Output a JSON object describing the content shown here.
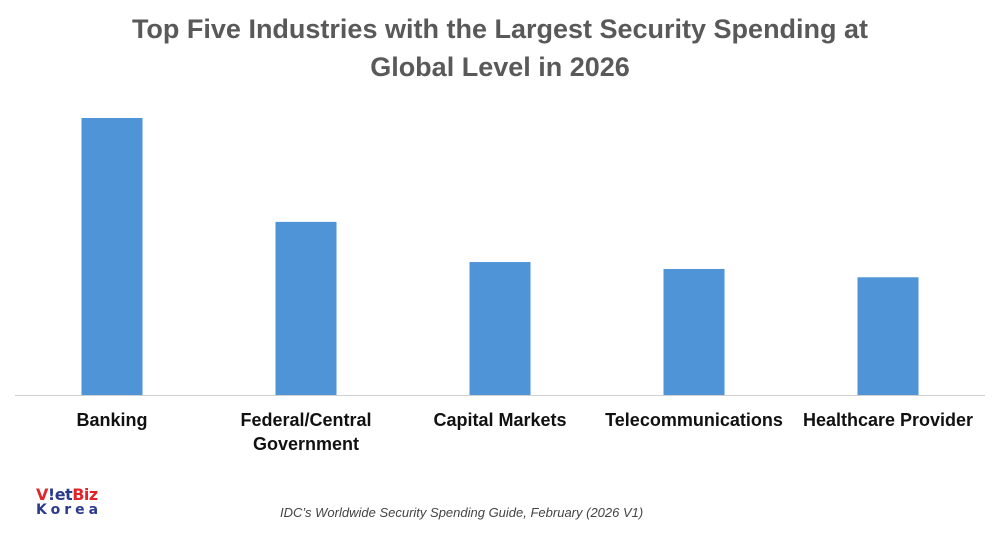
{
  "colors": {
    "bar": "#4f94d6",
    "axis": "#d0d0d0",
    "title": "#595959",
    "label": "#111111",
    "logo_red": "#e0262b",
    "logo_blue": "#2b3a8c"
  },
  "chart_data": {
    "type": "bar",
    "title_lines": [
      "Top Five Industries with the Largest Security Spending at",
      "Global Level in 2026"
    ],
    "categories": [
      "Banking",
      "Federal/Central Government",
      "Capital Markets",
      "Telecommunications",
      "Healthcare Provider"
    ],
    "category_lines": [
      [
        "Banking"
      ],
      [
        "Federal/Central",
        "Government"
      ],
      [
        "Capital Markets"
      ],
      [
        "Telecommunications"
      ],
      [
        "Healthcare Provider"
      ]
    ],
    "values": [
      100,
      62.5,
      48,
      45.5,
      42.5
    ],
    "value_unit": "relative index (no axis shown)",
    "xlabel": "",
    "ylabel": "",
    "ylim": [
      0,
      100
    ],
    "grid": false,
    "legend": "none"
  },
  "logo": {
    "line1_a": "V",
    "line1_b": "!et",
    "line1_c": "Biz",
    "line2": "Korea"
  },
  "source": "IDC’s Worldwide Security Spending Guide, February (2026 V1)"
}
